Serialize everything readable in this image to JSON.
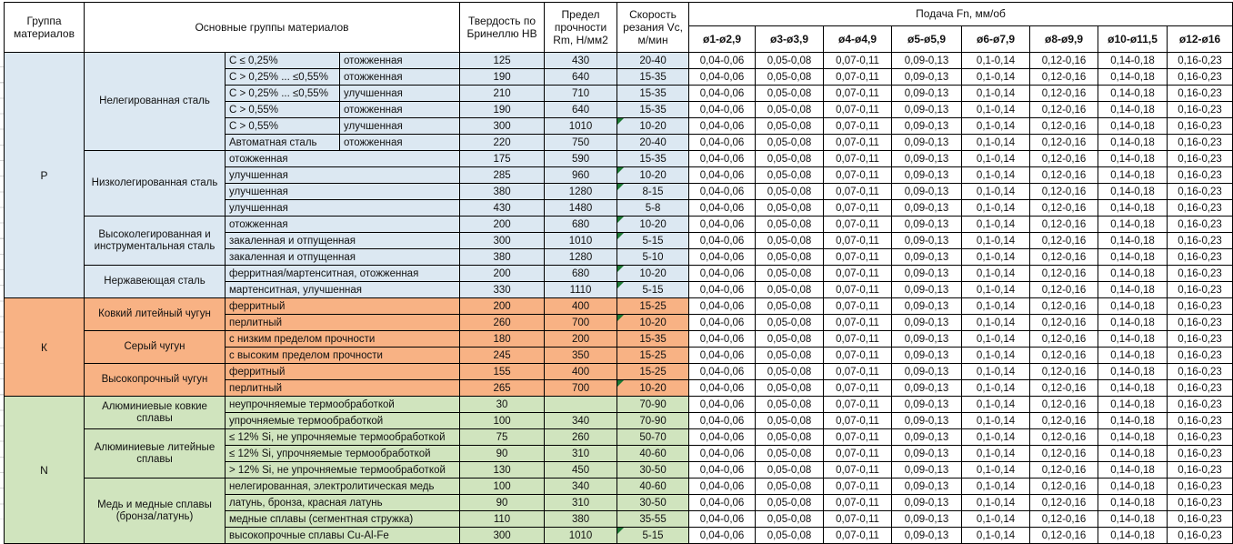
{
  "header": {
    "col_group": "Группа материалов",
    "col_main_groups": "Основные группы материалов",
    "col_hardness": "Твердость по Бринеллю HB",
    "col_strength": "Предел прочности Rm, Н/мм2",
    "col_speed": "Скорость резания Vc, м/мин",
    "col_feed": "Подача Fn, мм/об",
    "feed_diameters": [
      "ø1-ø2,9",
      "ø3-ø3,9",
      "ø4-ø4,9",
      "ø5-ø5,9",
      "ø6-ø7,9",
      "ø8-ø9,9",
      "ø10-ø11,5",
      "ø12-ø16"
    ]
  },
  "feed_values": [
    "0,04-0,06",
    "0,05-0,08",
    "0,07-0,11",
    "0,09-0,13",
    "0,1-0,14",
    "0,12-0,16",
    "0,14-0,18",
    "0,16-0,23"
  ],
  "colors": {
    "group_P": "#dce8f2",
    "group_K": "#f8b284",
    "group_N": "#d0e4be",
    "error_flag": "#1e7a35"
  },
  "groups": [
    {
      "code": "P",
      "color": "#dce8f2",
      "families": [
        {
          "name": "Нелегированная сталь",
          "rows": [
            {
              "sub1": "C ≤ 0,25%",
              "sub2": "отожженная",
              "hb": "125",
              "rm": "430",
              "vc": "20-40",
              "flag": false
            },
            {
              "sub1": "C > 0,25% ... ≤0,55%",
              "sub2": "отожженная",
              "hb": "190",
              "rm": "640",
              "vc": "15-35",
              "flag": false
            },
            {
              "sub1": "C > 0,25% ... ≤0,55%",
              "sub2": "улучшенная",
              "hb": "210",
              "rm": "710",
              "vc": "15-35",
              "flag": false
            },
            {
              "sub1": "C > 0,55%",
              "sub2": "отожженная",
              "hb": "190",
              "rm": "640",
              "vc": "15-35",
              "flag": false
            },
            {
              "sub1": "C > 0,55%",
              "sub2": "улучшенная",
              "hb": "300",
              "rm": "1010",
              "vc": "10-20",
              "flag": true
            },
            {
              "sub1": "Автоматная сталь",
              "sub2": "отожженная",
              "hb": "220",
              "rm": "750",
              "vc": "20-40",
              "flag": false
            }
          ]
        },
        {
          "name": "Низколегированная сталь",
          "rows": [
            {
              "detail": "отожженная",
              "hb": "175",
              "rm": "590",
              "vc": "15-35",
              "flag": false
            },
            {
              "detail": "улучшенная",
              "hb": "285",
              "rm": "960",
              "vc": "10-20",
              "flag": true
            },
            {
              "detail": "улучшенная",
              "hb": "380",
              "rm": "1280",
              "vc": "8-15",
              "flag": true
            },
            {
              "detail": "улучшенная",
              "hb": "430",
              "rm": "1480",
              "vc": "5-8",
              "flag": false
            }
          ]
        },
        {
          "name": "Высоколегированная и инструментальная сталь",
          "rows": [
            {
              "detail": "отожженная",
              "hb": "200",
              "rm": "680",
              "vc": "10-20",
              "flag": true
            },
            {
              "detail": "закаленная и отпущенная",
              "hb": "300",
              "rm": "1010",
              "vc": "5-15",
              "flag": true
            },
            {
              "detail": "закаленная и отпущенная",
              "hb": "380",
              "rm": "1280",
              "vc": "5-10",
              "flag": false
            }
          ]
        },
        {
          "name": "Нержавеющая сталь",
          "rows": [
            {
              "detail": "ферритная/мартенситная, отожженная",
              "hb": "200",
              "rm": "680",
              "vc": "10-20",
              "flag": true
            },
            {
              "detail": "мартенситная, улучшенная",
              "hb": "330",
              "rm": "1110",
              "vc": "5-15",
              "flag": true
            }
          ]
        }
      ]
    },
    {
      "code": "К",
      "color": "#f8b284",
      "families": [
        {
          "name": "Ковкий литейный чугун",
          "rows": [
            {
              "detail": "ферритный",
              "hb": "200",
              "rm": "400",
              "vc": "15-25",
              "flag": false
            },
            {
              "detail": "перлитный",
              "hb": "260",
              "rm": "700",
              "vc": "10-20",
              "flag": true
            }
          ]
        },
        {
          "name": "Серый чугун",
          "rows": [
            {
              "detail": "с низким пределом прочности",
              "hb": "180",
              "rm": "200",
              "vc": "15-35",
              "flag": false
            },
            {
              "detail": "с высоким пределом прочности",
              "hb": "245",
              "rm": "350",
              "vc": "15-25",
              "flag": false
            }
          ]
        },
        {
          "name": "Высокопрочный чугун",
          "rows": [
            {
              "detail": "ферритный",
              "hb": "155",
              "rm": "400",
              "vc": "15-25",
              "flag": false
            },
            {
              "detail": "перлитный",
              "hb": "265",
              "rm": "700",
              "vc": "10-20",
              "flag": true
            }
          ]
        }
      ]
    },
    {
      "code": "N",
      "color": "#d0e4be",
      "families": [
        {
          "name": "Алюминиевые ковкие сплавы",
          "rows": [
            {
              "detail": "неупрочняемые термообработкой",
              "hb": "30",
              "rm": "",
              "vc": "70-90",
              "flag": false
            },
            {
              "detail": "упрочняемые термообработкой",
              "hb": "100",
              "rm": "340",
              "vc": "70-90",
              "flag": false
            }
          ]
        },
        {
          "name": "Алюминиевые литейные сплавы",
          "rows": [
            {
              "detail": "≤ 12% Si, не упрочняемые термообработкой",
              "hb": "75",
              "rm": "260",
              "vc": "50-70",
              "flag": false
            },
            {
              "detail": "≤ 12% Si, упрочняемые термообработкой",
              "hb": "90",
              "rm": "310",
              "vc": "40-60",
              "flag": false
            },
            {
              "detail": "> 12% Si, не упрочняемые термообработкой",
              "hb": "130",
              "rm": "450",
              "vc": "30-50",
              "flag": false
            }
          ]
        },
        {
          "name": "Медь и медные сплавы (бронза/латунь)",
          "rows": [
            {
              "detail": "нелегированная, электролитическая медь",
              "hb": "100",
              "rm": "340",
              "vc": "40-60",
              "flag": false
            },
            {
              "detail": "латунь, бронза, красная латунь",
              "hb": "90",
              "rm": "310",
              "vc": "30-50",
              "flag": false
            },
            {
              "detail": "медные сплавы (сегментная стружка)",
              "hb": "110",
              "rm": "380",
              "vc": "35-55",
              "flag": false
            },
            {
              "detail": "высокопрочные сплавы Cu-Al-Fe",
              "hb": "300",
              "rm": "1010",
              "vc": "5-15",
              "flag": true
            }
          ]
        }
      ]
    }
  ]
}
